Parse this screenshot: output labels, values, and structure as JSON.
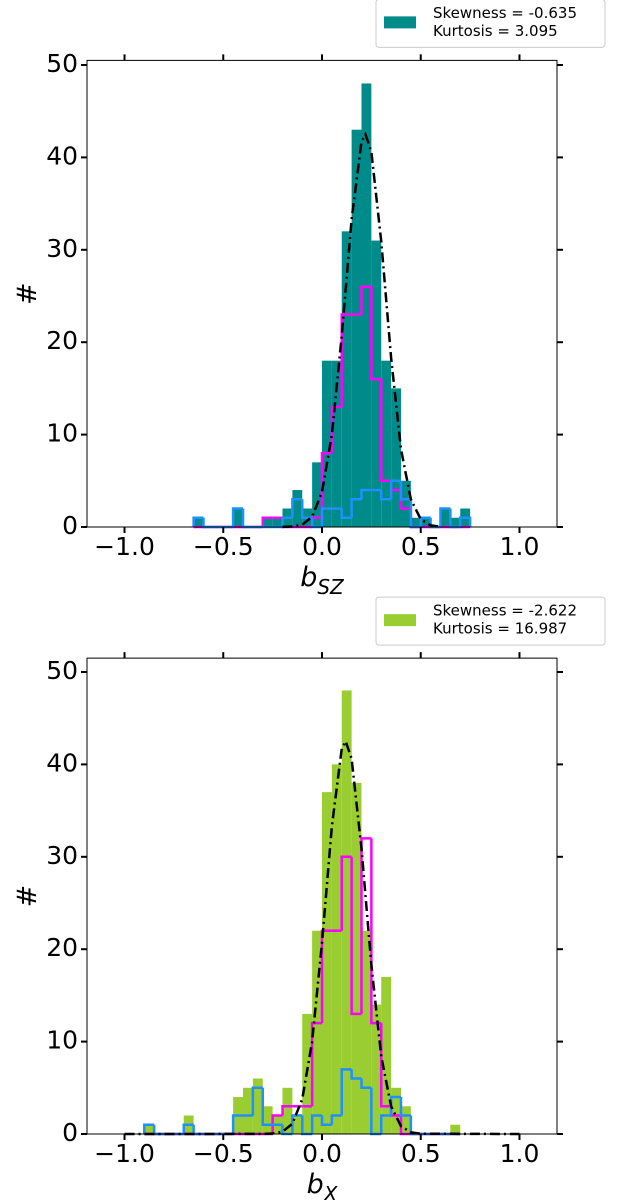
{
  "chart_data": [
    {
      "type": "histogram",
      "xlabel": "b",
      "xlabel_sub": "SZ",
      "ylabel": "#",
      "xlim": [
        -1.19,
        1.19
      ],
      "ylim": [
        0,
        50.5
      ],
      "xticks": [
        {
          "value": -1.0,
          "label": "−1.0"
        },
        {
          "value": -0.5,
          "label": "−0.5"
        },
        {
          "value": 0.0,
          "label": "0.0"
        },
        {
          "value": 0.5,
          "label": "0.5"
        },
        {
          "value": 1.0,
          "label": "1.0"
        }
      ],
      "yticks": [
        0,
        10,
        20,
        30,
        40,
        50
      ],
      "bins": [
        -0.65,
        -0.6,
        -0.55,
        -0.5,
        -0.45,
        -0.4,
        -0.35,
        -0.3,
        -0.25,
        -0.2,
        -0.15,
        -0.1,
        -0.05,
        0,
        0.05,
        0.1,
        0.15,
        0.2,
        0.25,
        0.3,
        0.35,
        0.4,
        0.45,
        0.5,
        0.55,
        0.6,
        0.65,
        0.7,
        0.75
      ],
      "series": [
        {
          "name": [
            "Skewness = -0.635",
            "Kurtosis = 3.095"
          ],
          "color": "#008b8b",
          "style": "filled",
          "values": [
            1,
            0,
            0,
            0,
            2,
            0,
            0,
            1,
            1,
            2,
            4,
            2,
            7,
            18,
            18,
            32,
            43,
            48,
            31,
            18,
            15,
            5,
            1,
            1,
            0,
            2,
            1,
            2
          ]
        },
        {
          "color": "#ff00ff",
          "style": "step",
          "values": [
            0,
            0,
            0,
            0,
            0,
            0,
            0,
            1,
            1,
            0,
            0,
            0,
            1,
            8,
            13,
            23,
            23,
            26,
            16,
            5,
            4,
            2,
            0,
            0,
            0,
            0,
            0,
            0
          ]
        },
        {
          "color": "#1e90ff",
          "style": "step",
          "values": [
            1,
            0,
            0,
            0,
            2,
            0,
            0,
            0,
            0,
            1,
            3,
            1,
            0,
            2,
            2,
            1,
            3,
            4,
            4,
            3,
            5,
            3,
            0,
            1,
            0,
            2,
            0,
            1
          ]
        }
      ],
      "curve": {
        "color": "#000000",
        "x": [
          -0.2,
          -0.15,
          -0.1,
          -0.05,
          0,
          0.05,
          0.1,
          0.15,
          0.2,
          0.22,
          0.25,
          0.3,
          0.35,
          0.4,
          0.45,
          0.5,
          0.55,
          0.6
        ],
        "values": [
          0.01,
          0.05,
          0.25,
          1.11,
          3.78,
          10.0,
          20.7,
          33.3,
          41.7,
          42.5,
          40.6,
          30.9,
          18.3,
          8.4,
          3.0,
          0.84,
          0.18,
          0.03
        ]
      }
    },
    {
      "type": "histogram",
      "xlabel": "b",
      "xlabel_sub": "X",
      "ylabel": "#",
      "xlim": [
        -1.19,
        1.19
      ],
      "ylim": [
        0,
        51.5
      ],
      "xticks": [
        {
          "value": -1.0,
          "label": "−1.0"
        },
        {
          "value": -0.5,
          "label": "−0.5"
        },
        {
          "value": 0.0,
          "label": "0.0"
        },
        {
          "value": 0.5,
          "label": "0.5"
        },
        {
          "value": 1.0,
          "label": "1.0"
        }
      ],
      "yticks": [
        0,
        10,
        20,
        30,
        40,
        50
      ],
      "bins": [
        -0.9,
        -0.85,
        -0.8,
        -0.75,
        -0.7,
        -0.65,
        -0.6,
        -0.55,
        -0.5,
        -0.45,
        -0.4,
        -0.35,
        -0.3,
        -0.25,
        -0.2,
        -0.15,
        -0.1,
        -0.05,
        0,
        0.05,
        0.1,
        0.15,
        0.2,
        0.25,
        0.3,
        0.35,
        0.4,
        0.45,
        0.5,
        0.55,
        0.6,
        0.65,
        0.7
      ],
      "series": [
        {
          "name": [
            "Skewness = -2.622",
            "Kurtosis = 16.987"
          ],
          "color": "#9acd32",
          "style": "filled",
          "values": [
            1,
            0,
            0,
            0,
            2,
            0,
            0,
            0,
            0,
            4,
            5,
            6,
            3,
            2,
            5,
            2,
            13,
            22,
            37,
            40,
            48,
            38,
            22,
            14,
            17,
            5,
            3,
            0,
            0,
            0,
            0,
            1
          ]
        },
        {
          "color": "#ff00ff",
          "style": "step",
          "values": [
            0,
            0,
            0,
            0,
            0,
            0,
            0,
            0,
            0,
            0,
            0,
            0,
            0,
            2,
            3,
            3,
            3,
            12,
            22,
            22,
            30,
            13,
            32,
            12,
            3,
            2,
            0,
            0,
            0,
            0,
            0,
            0
          ]
        },
        {
          "color": "#1e90ff",
          "style": "step",
          "values": [
            1,
            0,
            0,
            0,
            1,
            0,
            0,
            0,
            0,
            2,
            2,
            5,
            1,
            1,
            0,
            2,
            0,
            2,
            1,
            2,
            7,
            6,
            5,
            0,
            2,
            4,
            2,
            0,
            0,
            0,
            0,
            0
          ]
        }
      ],
      "curve": {
        "color": "#000000",
        "x": [
          -1.0,
          -0.3,
          -0.25,
          -0.2,
          -0.15,
          -0.1,
          -0.05,
          0,
          0.05,
          0.1,
          0.12,
          0.15,
          0.2,
          0.25,
          0.3,
          0.35,
          0.4,
          0.45,
          0.5,
          1.0
        ],
        "values": [
          0,
          0.01,
          0.05,
          0.25,
          1.11,
          3.78,
          10.0,
          20.7,
          33.3,
          41.7,
          42.5,
          40.6,
          30.9,
          18.3,
          8.4,
          3.0,
          0.84,
          0.18,
          0.03,
          0
        ]
      }
    }
  ]
}
